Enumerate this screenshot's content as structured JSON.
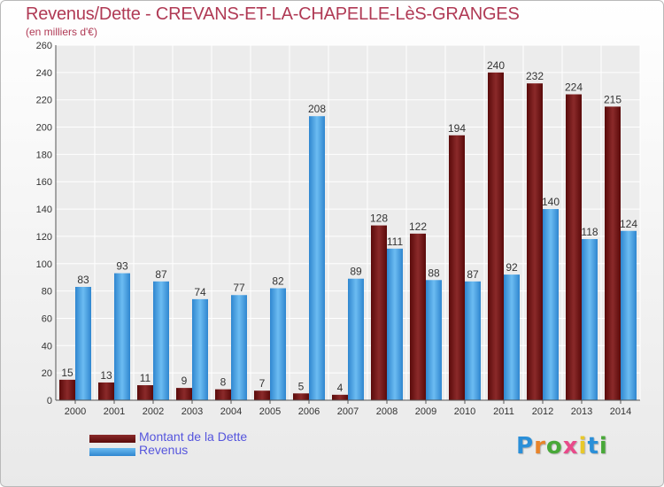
{
  "chart_data": {
    "type": "bar",
    "title": "Revenus/Dette - CREVANS-ET-LA-CHAPELLE-LèS-GRANGES",
    "subtitle": "(en milliers d'€)",
    "categories": [
      "2000",
      "2001",
      "2002",
      "2003",
      "2004",
      "2005",
      "2006",
      "2007",
      "2008",
      "2009",
      "2010",
      "2011",
      "2012",
      "2013",
      "2014"
    ],
    "series": [
      {
        "name": "Montant de la Dette",
        "color": "#7a1a1a",
        "values": [
          15,
          13,
          11,
          9,
          8,
          7,
          5,
          4,
          128,
          122,
          194,
          240,
          232,
          224,
          215
        ]
      },
      {
        "name": "Revenus",
        "color": "#4aa3e8",
        "values": [
          83,
          93,
          87,
          74,
          77,
          82,
          208,
          89,
          111,
          88,
          87,
          92,
          140,
          118,
          124
        ]
      }
    ],
    "ylim": [
      0,
      260
    ],
    "yticks": [
      0,
      20,
      40,
      60,
      80,
      100,
      120,
      140,
      160,
      180,
      200,
      220,
      240,
      260
    ],
    "grid": true,
    "legend": "bottom-left"
  },
  "legend": {
    "debt_label": "Montant de la Dette",
    "revenue_label": "Revenus"
  },
  "logo": {
    "letters": [
      "P",
      "r",
      "o",
      "x",
      "i",
      "t",
      "i"
    ],
    "colors": [
      "#2a8fd8",
      "#e8842a",
      "#48a838",
      "#e84a8a",
      "#e8c82a",
      "#2a8fd8",
      "#48a838"
    ]
  }
}
